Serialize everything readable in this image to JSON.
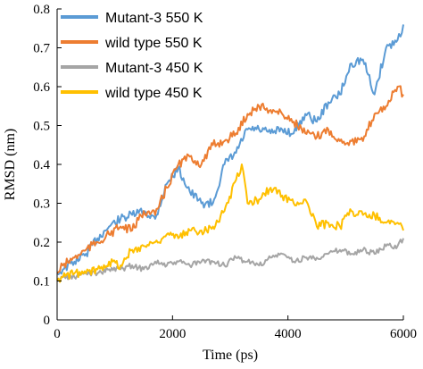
{
  "chart_data": {
    "type": "line",
    "xlabel": "Time (ps)",
    "ylabel": "RMSD (nm)",
    "xlim": [
      0,
      6000
    ],
    "ylim": [
      0,
      0.8
    ],
    "x_ticks": [
      "0",
      "2000",
      "4000",
      "6000"
    ],
    "y_ticks": [
      "0",
      "0.1",
      "0.2",
      "0.3",
      "0.4",
      "0.5",
      "0.6",
      "0.7",
      "0.8"
    ],
    "grid": false,
    "legend_position": "top-left",
    "series": [
      {
        "name": "Mutant-3 550 K",
        "color": "#5b9bd5",
        "x": [
          0,
          100,
          300,
          500,
          700,
          900,
          1100,
          1300,
          1500,
          1700,
          1900,
          2100,
          2300,
          2500,
          2700,
          2900,
          3100,
          3300,
          3500,
          3700,
          3900,
          4100,
          4300,
          4500,
          4700,
          4900,
          5100,
          5300,
          5500,
          5700,
          5900,
          6000
        ],
        "y": [
          0.12,
          0.13,
          0.15,
          0.17,
          0.21,
          0.24,
          0.26,
          0.27,
          0.28,
          0.26,
          0.35,
          0.39,
          0.33,
          0.3,
          0.3,
          0.4,
          0.43,
          0.49,
          0.49,
          0.48,
          0.49,
          0.48,
          0.53,
          0.51,
          0.56,
          0.58,
          0.66,
          0.67,
          0.58,
          0.7,
          0.72,
          0.76
        ]
      },
      {
        "name": "wild type 550 K",
        "color": "#ed7d31",
        "x": [
          0,
          100,
          300,
          500,
          700,
          900,
          1100,
          1300,
          1500,
          1700,
          1900,
          2100,
          2300,
          2500,
          2700,
          2900,
          3100,
          3300,
          3500,
          3700,
          3900,
          4100,
          4300,
          4500,
          4700,
          4900,
          5100,
          5300,
          5500,
          5700,
          5900,
          6000
        ],
        "y": [
          0.12,
          0.14,
          0.16,
          0.18,
          0.2,
          0.22,
          0.24,
          0.23,
          0.28,
          0.27,
          0.34,
          0.4,
          0.42,
          0.4,
          0.45,
          0.46,
          0.48,
          0.53,
          0.55,
          0.54,
          0.53,
          0.51,
          0.48,
          0.47,
          0.49,
          0.46,
          0.46,
          0.46,
          0.53,
          0.55,
          0.6,
          0.58
        ]
      },
      {
        "name": "Mutant-3 450 K",
        "color": "#a5a5a5",
        "x": [
          0,
          100,
          300,
          500,
          700,
          900,
          1100,
          1300,
          1500,
          1700,
          1900,
          2100,
          2300,
          2500,
          2700,
          2900,
          3100,
          3300,
          3500,
          3700,
          3900,
          4100,
          4300,
          4500,
          4700,
          4900,
          5100,
          5300,
          5500,
          5700,
          5900,
          6000
        ],
        "y": [
          0.1,
          0.11,
          0.11,
          0.12,
          0.12,
          0.13,
          0.13,
          0.14,
          0.13,
          0.15,
          0.14,
          0.15,
          0.14,
          0.15,
          0.15,
          0.14,
          0.16,
          0.15,
          0.14,
          0.16,
          0.17,
          0.15,
          0.16,
          0.16,
          0.17,
          0.18,
          0.17,
          0.18,
          0.17,
          0.19,
          0.19,
          0.21
        ]
      },
      {
        "name": "wild type 450 K",
        "color": "#ffc000",
        "x": [
          0,
          100,
          300,
          500,
          700,
          900,
          1100,
          1300,
          1500,
          1700,
          1900,
          2100,
          2300,
          2500,
          2700,
          2900,
          3100,
          3200,
          3300,
          3500,
          3700,
          3900,
          4100,
          4300,
          4500,
          4700,
          4900,
          5100,
          5300,
          5500,
          5700,
          5900,
          6000
        ],
        "y": [
          0.1,
          0.11,
          0.12,
          0.12,
          0.13,
          0.15,
          0.14,
          0.18,
          0.19,
          0.2,
          0.22,
          0.21,
          0.23,
          0.23,
          0.24,
          0.28,
          0.36,
          0.4,
          0.3,
          0.31,
          0.34,
          0.32,
          0.3,
          0.31,
          0.24,
          0.25,
          0.24,
          0.28,
          0.27,
          0.27,
          0.25,
          0.25,
          0.23
        ]
      }
    ]
  }
}
